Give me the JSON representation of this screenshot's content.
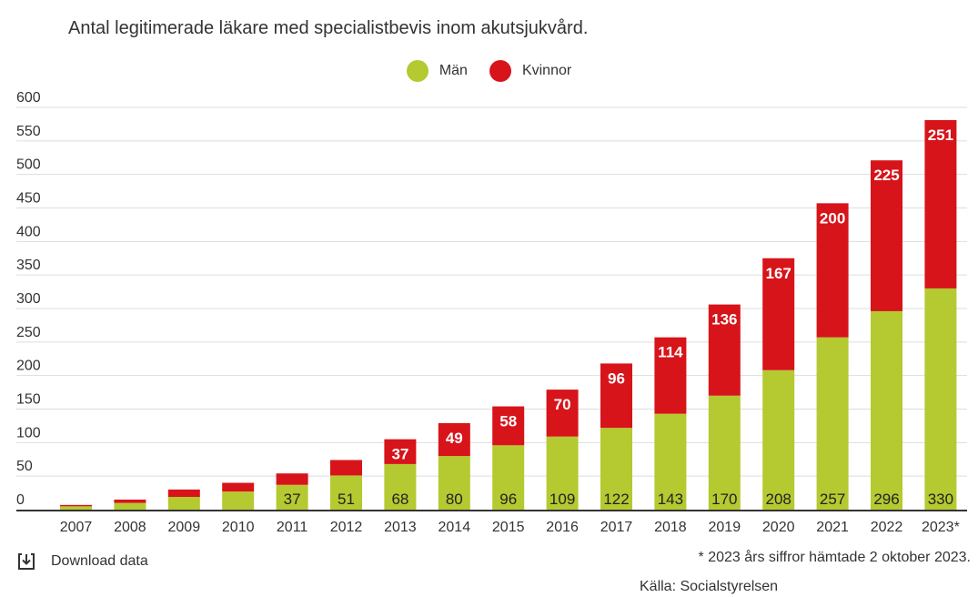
{
  "chart_data": {
    "type": "bar",
    "stacked": true,
    "title": "Antal legitimerade läkare med specialistbevis inom akutsjukvård.",
    "categories": [
      "2007",
      "2008",
      "2009",
      "2010",
      "2011",
      "2012",
      "2013",
      "2014",
      "2015",
      "2016",
      "2017",
      "2018",
      "2019",
      "2020",
      "2021",
      "2022",
      "2023*"
    ],
    "series": [
      {
        "name": "Män",
        "color": "#b5c930",
        "values": [
          5,
          10,
          19,
          27,
          37,
          51,
          68,
          80,
          96,
          109,
          122,
          143,
          170,
          208,
          257,
          296,
          330
        ],
        "labels": [
          "",
          "",
          "",
          "",
          "37",
          "51",
          "68",
          "80",
          "96",
          "109",
          "122",
          "143",
          "170",
          "208",
          "257",
          "296",
          "330"
        ]
      },
      {
        "name": "Kvinnor",
        "color": "#d7141a",
        "values": [
          2,
          5,
          11,
          13,
          17,
          23,
          37,
          49,
          58,
          70,
          96,
          114,
          136,
          167,
          200,
          225,
          251
        ],
        "labels": [
          "",
          "",
          "",
          "",
          "",
          "",
          "37",
          "49",
          "58",
          "70",
          "96",
          "114",
          "136",
          "167",
          "200",
          "225",
          "251"
        ]
      }
    ],
    "yticks": [
      0,
      50,
      100,
      150,
      200,
      250,
      300,
      350,
      400,
      450,
      500,
      550,
      600
    ],
    "ylim": [
      0,
      600
    ],
    "grid": true,
    "legend_position": "top-center"
  },
  "download": {
    "label": "Download data",
    "icon": "download-icon"
  },
  "footnote": "* 2023 års siffror hämtade 2 oktober 2023.",
  "source": "Källa: Socialstyrelsen"
}
